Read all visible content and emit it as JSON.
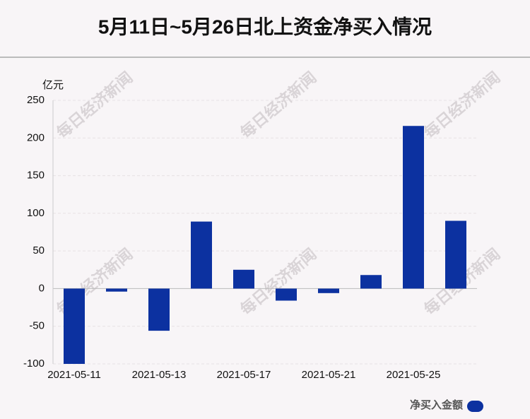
{
  "chart_data": {
    "type": "bar",
    "title": "5月11日~5月26日北上资金净买入情况",
    "y_unit": "亿元",
    "watermark": "每日经济新闻",
    "categories": [
      "2021-05-11",
      null,
      "2021-05-13",
      null,
      "2021-05-17",
      null,
      "2021-05-21",
      null,
      "2021-05-25",
      null
    ],
    "series": [
      {
        "name": "净买入金额",
        "color": "#0c31a0",
        "values": [
          -100,
          -4,
          -56,
          89,
          25,
          -16,
          -6,
          18,
          216,
          90
        ]
      }
    ],
    "ylim": [
      -100,
      250
    ],
    "yticks": [
      -100,
      -50,
      0,
      50,
      100,
      150,
      200,
      250
    ],
    "grid": true,
    "legend": "bottom-right"
  }
}
